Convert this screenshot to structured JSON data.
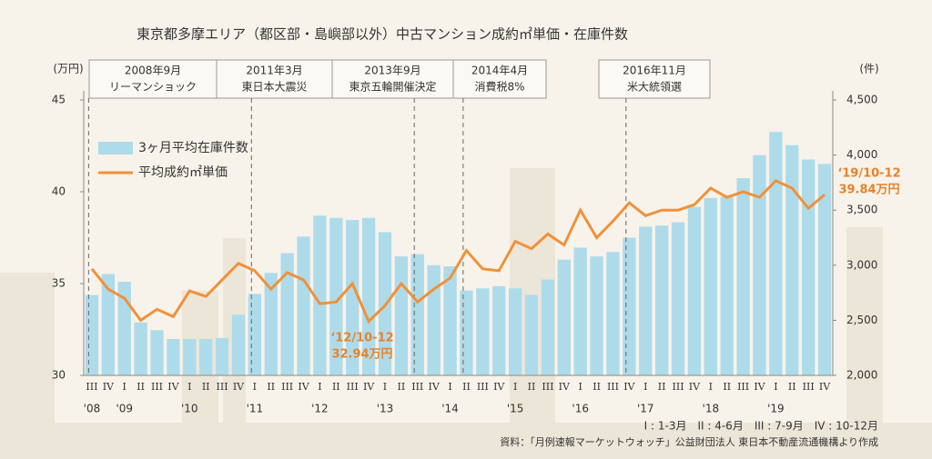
{
  "chart_data": {
    "type": "bar-line",
    "title": "東京都多摩エリア（都区部・島嶼部以外）中古マンション成約㎡単価・在庫件数",
    "y_unit": "(万円)",
    "y2_unit": "(件)",
    "categories": [
      "III",
      "IV",
      "I",
      "II",
      "III",
      "IV",
      "I",
      "II",
      "III",
      "IV",
      "I",
      "II",
      "III",
      "IV",
      "I",
      "II",
      "III",
      "IV",
      "I",
      "II",
      "III",
      "IV",
      "I",
      "II",
      "III",
      "IV",
      "I",
      "II",
      "III",
      "IV",
      "I",
      "II",
      "III",
      "IV",
      "I",
      "II",
      "III",
      "IV",
      "I",
      "II",
      "III",
      "IV",
      "I",
      "II",
      "III",
      "IV"
    ],
    "years": [
      "'08",
      "'09",
      "'10",
      "'11",
      "'12",
      "'13",
      "'14",
      "'15",
      "'16",
      "'17",
      "'18",
      "'19"
    ],
    "series": [
      {
        "name": "3ヶ月平均在庫件数",
        "type": "bar",
        "axis": "y2",
        "color": "#aedbea",
        "values": [
          2730,
          2920,
          2850,
          2480,
          2410,
          2330,
          2330,
          2330,
          2340,
          2550,
          2740,
          2930,
          3110,
          3260,
          3450,
          3430,
          3410,
          3430,
          3300,
          3080,
          3100,
          3000,
          2990,
          2770,
          2790,
          2810,
          2790,
          2730,
          2870,
          3050,
          3160,
          3080,
          3120,
          3250,
          3350,
          3360,
          3390,
          3530,
          3610,
          3620,
          3790,
          4000,
          4210,
          4090,
          3960,
          3920
        ]
      },
      {
        "name": "平均成約㎡単価",
        "type": "line",
        "color": "#f0913a",
        "values": [
          35.8,
          34.7,
          34.2,
          33.0,
          33.6,
          33.2,
          34.6,
          34.3,
          35.2,
          36.1,
          35.7,
          34.7,
          35.6,
          35.2,
          33.9,
          34.0,
          35.0,
          32.94,
          33.8,
          35.0,
          34.0,
          34.7,
          35.3,
          36.8,
          35.8,
          35.7,
          37.3,
          36.9,
          37.7,
          37.1,
          39.0,
          37.5,
          38.4,
          39.4,
          38.7,
          39.0,
          39.0,
          39.3,
          40.2,
          39.7,
          40.0,
          39.7,
          40.6,
          40.2,
          39.1,
          39.84
        ]
      }
    ],
    "ylim": [
      30,
      45
    ],
    "yticks": [
      30,
      35,
      40,
      45
    ],
    "y2lim": [
      2000,
      4500
    ],
    "y2ticks": [
      {
        "value": 2000,
        "label": "2,000"
      },
      {
        "value": 2500,
        "label": "2,500"
      },
      {
        "value": 3000,
        "label": "3,000"
      },
      {
        "value": 3500,
        "label": "3,500"
      },
      {
        "value": 4000,
        "label": "4,000"
      },
      {
        "value": 4500,
        "label": "4,500"
      }
    ],
    "events": [
      {
        "date": "2008年9月",
        "name": "リーマンショック"
      },
      {
        "date": "2011年3月",
        "name": "東日本大震災"
      },
      {
        "date": "2013年9月",
        "name": "東京五輪開催決定"
      },
      {
        "date": "2014年4月",
        "name": "消費税8%"
      },
      {
        "date": "2016年11月",
        "name": "米大統領選"
      }
    ],
    "annotations": [
      {
        "period": "‘12/10-12",
        "value_label": "32.94万円"
      },
      {
        "period": "‘19/10-12",
        "value_label": "39.84万円"
      }
    ],
    "quarter_note": "I : 1-3月　II : 4-6月　III : 7-9月　IV : 10-12月",
    "source": "資料：「月例速報マーケットウォッチ」公益財団法人 東日本不動産流通機構より作成"
  }
}
